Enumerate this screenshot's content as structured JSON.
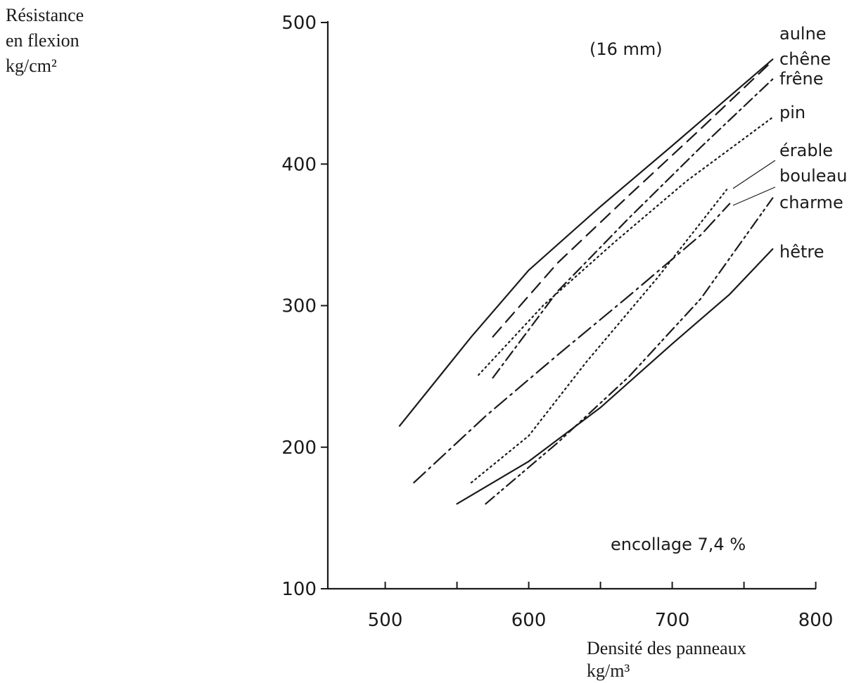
{
  "chart_data": {
    "type": "line",
    "ylabel_lines": [
      "Résistance",
      "en flexion",
      "kg/cm²"
    ],
    "xlabel_lines": [
      "Densité des panneaux",
      "kg/m³"
    ],
    "annotations": [
      "(16 mm)",
      "encollage 7,4 %"
    ],
    "xlim": [
      460,
      800
    ],
    "ylim": [
      100,
      500
    ],
    "x_ticks": [
      500,
      600,
      700,
      800
    ],
    "y_ticks": [
      100,
      200,
      300,
      400,
      500
    ],
    "grid": false,
    "legend": "right, labels at line ends",
    "series": [
      {
        "name": "aulne",
        "style": "solid",
        "points": [
          [
            510,
            215
          ],
          [
            560,
            278
          ],
          [
            600,
            325
          ],
          [
            650,
            370
          ],
          [
            700,
            413
          ],
          [
            770,
            474
          ]
        ]
      },
      {
        "name": "chêne",
        "style": "dashed",
        "points": [
          [
            575,
            278
          ],
          [
            620,
            330
          ],
          [
            670,
            378
          ],
          [
            720,
            425
          ],
          [
            770,
            473
          ]
        ]
      },
      {
        "name": "frêne",
        "style": "dash-dot",
        "points": [
          [
            575,
            249
          ],
          [
            620,
            310
          ],
          [
            670,
            362
          ],
          [
            720,
            412
          ],
          [
            770,
            460
          ]
        ]
      },
      {
        "name": "pin",
        "style": "dotted",
        "points": [
          [
            565,
            251
          ],
          [
            610,
            300
          ],
          [
            660,
            345
          ],
          [
            710,
            388
          ],
          [
            770,
            433
          ]
        ]
      },
      {
        "name": "érable",
        "style": "dotted",
        "points": [
          [
            560,
            175
          ],
          [
            600,
            208
          ],
          [
            640,
            260
          ],
          [
            690,
            320
          ],
          [
            738,
            382
          ]
        ]
      },
      {
        "name": "bouleau",
        "style": "long-dash-dot",
        "points": [
          [
            520,
            175
          ],
          [
            570,
            222
          ],
          [
            620,
            265
          ],
          [
            670,
            307
          ],
          [
            720,
            350
          ],
          [
            740,
            372
          ]
        ]
      },
      {
        "name": "charme",
        "style": "dash-dot-dot",
        "points": [
          [
            570,
            160
          ],
          [
            620,
            203
          ],
          [
            670,
            250
          ],
          [
            720,
            305
          ],
          [
            770,
            376
          ]
        ]
      },
      {
        "name": "hêtre",
        "style": "solid",
        "points": [
          [
            550,
            160
          ],
          [
            600,
            190
          ],
          [
            650,
            228
          ],
          [
            700,
            273
          ],
          [
            740,
            308
          ],
          [
            770,
            340
          ]
        ]
      }
    ]
  }
}
